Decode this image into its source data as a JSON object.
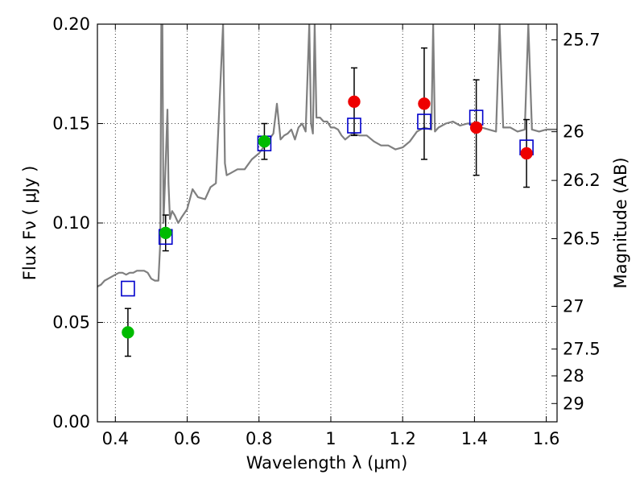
{
  "chart_data": {
    "type": "scatter",
    "xlabel": "Wavelength  λ (μm)",
    "ylabel": "Flux  Fν  ( μJy )",
    "ylabel_right": "Magnitude (AB)",
    "xlim": [
      0.35,
      1.63
    ],
    "ylim": [
      0.0,
      0.2
    ],
    "grid": true,
    "x_ticks": [
      0.4,
      0.6,
      0.8,
      1.0,
      1.2,
      1.4,
      1.6
    ],
    "x_tick_labels": [
      "0.4",
      "0.6",
      "0.8",
      "1",
      "1.2",
      "1.4",
      "1.6"
    ],
    "y_ticks": [
      0.0,
      0.05,
      0.1,
      0.15,
      0.2
    ],
    "y_tick_labels": [
      "0.00",
      "0.05",
      "0.10",
      "0.15",
      "0.20"
    ],
    "right_ticks": [
      {
        "label": "25.7",
        "flux": 0.1921
      },
      {
        "label": "26",
        "flux": 0.1459
      },
      {
        "label": "26.2",
        "flux": 0.1214
      },
      {
        "label": "26.5",
        "flux": 0.0921
      },
      {
        "label": "27",
        "flux": 0.0581
      },
      {
        "label": "27.5",
        "flux": 0.0366
      },
      {
        "label": "28",
        "flux": 0.0231
      },
      {
        "label": "29",
        "flux": 0.0092
      }
    ],
    "series": [
      {
        "kind": "spectrum",
        "color": "#7f7f7f",
        "x": [
          0.35,
          0.36,
          0.37,
          0.38,
          0.39,
          0.4,
          0.41,
          0.42,
          0.43,
          0.44,
          0.45,
          0.46,
          0.47,
          0.48,
          0.49,
          0.5,
          0.51,
          0.52,
          0.525,
          0.528,
          0.531,
          0.534,
          0.54,
          0.545,
          0.548,
          0.552,
          0.558,
          0.565,
          0.575,
          0.585,
          0.6,
          0.615,
          0.63,
          0.65,
          0.665,
          0.68,
          0.7,
          0.705,
          0.71,
          0.72,
          0.74,
          0.76,
          0.78,
          0.8,
          0.82,
          0.84,
          0.85,
          0.86,
          0.87,
          0.88,
          0.89,
          0.9,
          0.91,
          0.92,
          0.93,
          0.94,
          0.945,
          0.95,
          0.955,
          0.96,
          0.97,
          0.98,
          0.99,
          1.0,
          1.01,
          1.02,
          1.03,
          1.04,
          1.06,
          1.08,
          1.1,
          1.12,
          1.14,
          1.16,
          1.18,
          1.2,
          1.22,
          1.24,
          1.26,
          1.28,
          1.285,
          1.29,
          1.3,
          1.32,
          1.34,
          1.36,
          1.38,
          1.4,
          1.42,
          1.44,
          1.46,
          1.47,
          1.48,
          1.5,
          1.52,
          1.54,
          1.55,
          1.56,
          1.58,
          1.6,
          1.63
        ],
        "y": [
          0.068,
          0.069,
          0.071,
          0.072,
          0.073,
          0.074,
          0.075,
          0.075,
          0.074,
          0.075,
          0.075,
          0.076,
          0.076,
          0.076,
          0.075,
          0.072,
          0.071,
          0.071,
          0.09,
          0.2,
          0.2,
          0.1,
          0.13,
          0.157,
          0.12,
          0.102,
          0.106,
          0.104,
          0.1,
          0.103,
          0.107,
          0.117,
          0.113,
          0.112,
          0.118,
          0.12,
          0.2,
          0.13,
          0.124,
          0.125,
          0.127,
          0.127,
          0.132,
          0.135,
          0.14,
          0.145,
          0.16,
          0.142,
          0.144,
          0.145,
          0.147,
          0.142,
          0.148,
          0.15,
          0.146,
          0.2,
          0.15,
          0.145,
          0.2,
          0.153,
          0.153,
          0.151,
          0.151,
          0.148,
          0.148,
          0.147,
          0.144,
          0.142,
          0.145,
          0.144,
          0.144,
          0.141,
          0.139,
          0.139,
          0.137,
          0.138,
          0.141,
          0.146,
          0.148,
          0.147,
          0.2,
          0.146,
          0.148,
          0.15,
          0.151,
          0.149,
          0.15,
          0.15,
          0.148,
          0.147,
          0.146,
          0.2,
          0.148,
          0.148,
          0.146,
          0.147,
          0.2,
          0.147,
          0.146,
          0.147,
          0.147
        ]
      },
      {
        "kind": "model_boxes",
        "color": "#0000cc",
        "x": [
          0.435,
          0.54,
          0.815,
          1.065,
          1.26,
          1.405,
          1.545
        ],
        "y": [
          0.067,
          0.093,
          0.14,
          0.149,
          0.151,
          0.153,
          0.138
        ]
      },
      {
        "kind": "photometry",
        "color": "#00bb00",
        "x": [
          0.435,
          0.54,
          0.815
        ],
        "y": [
          0.045,
          0.095,
          0.141
        ],
        "err": [
          0.012,
          0.009,
          0.009
        ]
      },
      {
        "kind": "photometry",
        "color": "#ee0000",
        "x": [
          1.065,
          1.26,
          1.405,
          1.545
        ],
        "y": [
          0.161,
          0.16,
          0.148,
          0.135
        ],
        "err": [
          0.017,
          0.028,
          0.024,
          0.017
        ]
      }
    ]
  }
}
